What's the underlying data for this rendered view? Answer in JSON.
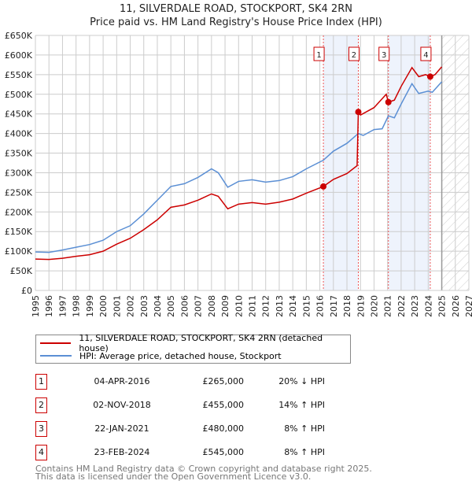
{
  "title": "11, SILVERDALE ROAD, STOCKPORT, SK4 2RN",
  "subtitle": "Price paid vs. HM Land Registry's House Price Index (HPI)",
  "chart_data": {
    "type": "line",
    "title": "11, SILVERDALE ROAD, STOCKPORT, SK4 2RN",
    "subtitle": "Price paid vs. HM Land Registry's House Price Index (HPI)",
    "xlim": [
      1995,
      2027
    ],
    "ylim": [
      0,
      650000
    ],
    "x_ticks": [
      "1995",
      "1996",
      "1997",
      "1998",
      "1999",
      "2000",
      "2001",
      "2002",
      "2003",
      "2004",
      "2005",
      "2006",
      "2007",
      "2008",
      "2009",
      "2010",
      "2011",
      "2012",
      "2013",
      "2014",
      "2015",
      "2016",
      "2017",
      "2018",
      "2019",
      "2020",
      "2021",
      "2022",
      "2023",
      "2024",
      "2025",
      "2026",
      "2027"
    ],
    "y_ticks": [
      {
        "v": 0,
        "label": "£0"
      },
      {
        "v": 50000,
        "label": "£50K"
      },
      {
        "v": 100000,
        "label": "£100K"
      },
      {
        "v": 150000,
        "label": "£150K"
      },
      {
        "v": 200000,
        "label": "£200K"
      },
      {
        "v": 250000,
        "label": "£250K"
      },
      {
        "v": 300000,
        "label": "£300K"
      },
      {
        "v": 350000,
        "label": "£350K"
      },
      {
        "v": 400000,
        "label": "£400K"
      },
      {
        "v": 450000,
        "label": "£450K"
      },
      {
        "v": 500000,
        "label": "£500K"
      },
      {
        "v": 550000,
        "label": "£550K"
      },
      {
        "v": 600000,
        "label": "£600K"
      },
      {
        "v": 650000,
        "label": "£650K"
      }
    ],
    "grid": true,
    "forecast_from": 2025.0,
    "shaded_ranges": [
      [
        2016.26,
        2018.84
      ],
      [
        2021.06,
        2024.15
      ]
    ],
    "series": [
      {
        "name": "11, SILVERDALE ROAD, STOCKPORT, SK4 2RN (detached house)",
        "color": "#cc0000",
        "x": [
          1995,
          1996,
          1997,
          1998,
          1999,
          2000,
          2001,
          2002,
          2003,
          2004,
          2005,
          2006,
          2007,
          2008,
          2008.5,
          2009.2,
          2010,
          2011,
          2012,
          2013,
          2014,
          2015,
          2016.26,
          2017,
          2018,
          2018.75,
          2018.84,
          2019,
          2020,
          2020.9,
          2021.06,
          2021.5,
          2022,
          2022.8,
          2023.3,
          2023.8,
          2024.15,
          2024.5,
          2025
        ],
        "y": [
          80000,
          79000,
          82000,
          87000,
          91000,
          100000,
          118000,
          133000,
          155000,
          180000,
          212000,
          218000,
          230000,
          246000,
          240000,
          208000,
          220000,
          224000,
          220000,
          225000,
          233000,
          248000,
          265000,
          283000,
          298000,
          318000,
          455000,
          447000,
          466000,
          500000,
          480000,
          485000,
          520000,
          568000,
          545000,
          550000,
          545000,
          550000,
          570000
        ]
      },
      {
        "name": "HPI: Average price, detached house, Stockport",
        "color": "#5b8fd4",
        "x": [
          1995,
          1996,
          1997,
          1998,
          1999,
          2000,
          2001,
          2002,
          2003,
          2004,
          2005,
          2006,
          2007,
          2008,
          2008.5,
          2009.2,
          2010,
          2011,
          2012,
          2013,
          2014,
          2015,
          2016.26,
          2017,
          2018,
          2018.84,
          2019.2,
          2020,
          2020.6,
          2021.06,
          2021.5,
          2022,
          2022.8,
          2023.3,
          2024,
          2024.3,
          2025
        ],
        "y": [
          98000,
          97000,
          103000,
          110000,
          117000,
          128000,
          150000,
          165000,
          195000,
          230000,
          265000,
          272000,
          288000,
          310000,
          300000,
          263000,
          278000,
          282000,
          276000,
          280000,
          290000,
          310000,
          332000,
          355000,
          375000,
          400000,
          395000,
          410000,
          412000,
          445000,
          440000,
          475000,
          527000,
          502000,
          508000,
          505000,
          532000
        ]
      }
    ],
    "sales": [
      {
        "n": "1",
        "x": 2016.26,
        "y": 265000
      },
      {
        "n": "2",
        "x": 2018.84,
        "y": 455000
      },
      {
        "n": "3",
        "x": 2021.06,
        "y": 480000
      },
      {
        "n": "4",
        "x": 2024.15,
        "y": 545000
      }
    ]
  },
  "legend": [
    {
      "label": "11, SILVERDALE ROAD, STOCKPORT, SK4 2RN (detached house)",
      "color": "#cc0000"
    },
    {
      "label": "HPI: Average price, detached house, Stockport",
      "color": "#5b8fd4"
    }
  ],
  "transactions": [
    {
      "n": "1",
      "date": "04-APR-2016",
      "price": "£265,000",
      "hpi": "20% ↓ HPI"
    },
    {
      "n": "2",
      "date": "02-NOV-2018",
      "price": "£455,000",
      "hpi": "14% ↑ HPI"
    },
    {
      "n": "3",
      "date": "22-JAN-2021",
      "price": "£480,000",
      "hpi": "8% ↑ HPI"
    },
    {
      "n": "4",
      "date": "23-FEB-2024",
      "price": "£545,000",
      "hpi": "8% ↑ HPI"
    }
  ],
  "footer": {
    "line1": "Contains HM Land Registry data © Crown copyright and database right 2025.",
    "line2": "This data is licensed under the Open Government Licence v3.0."
  }
}
